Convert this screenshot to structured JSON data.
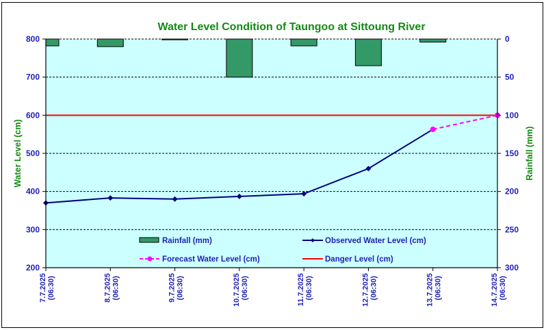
{
  "chart_data": {
    "type": "line",
    "title": "Water Level Condition of Taungoo at  Sittoung River",
    "ylabel": "Water Level (cm)",
    "y2label": "Rainfall (mm)",
    "ylim": [
      200,
      800
    ],
    "yticks": [
      "800",
      "700",
      "600",
      "500",
      "400",
      "300",
      "200"
    ],
    "ytick_values": [
      800,
      700,
      600,
      500,
      400,
      300,
      200
    ],
    "y2lim": [
      0,
      300
    ],
    "y2_inverted": true,
    "y2ticks": [
      "0",
      "50",
      "100",
      "150",
      "200",
      "250",
      "300"
    ],
    "y2tick_values": [
      0,
      50,
      100,
      150,
      200,
      250,
      300
    ],
    "grid": true,
    "categories": [
      {
        "date": "7.7.2025",
        "time": "(06:30)"
      },
      {
        "date": "8.7.2025",
        "time": "(06:30)"
      },
      {
        "date": "9.7.2025",
        "time": "(06:30)"
      },
      {
        "date": "10.7.2025",
        "time": "(06:30)"
      },
      {
        "date": "11.7.2025",
        "time": "(06:30)"
      },
      {
        "date": "12.7.2025",
        "time": "(06:30)"
      },
      {
        "date": "13.7.2025",
        "time": "(06:30)"
      },
      {
        "date": "14.7.2025",
        "time": "(06:30)"
      }
    ],
    "series": [
      {
        "name": "Rainfall (mm)",
        "type": "bar",
        "axis": "y2",
        "color": "#339966",
        "values": [
          9,
          10,
          1,
          50,
          9,
          35,
          4,
          null
        ]
      },
      {
        "name": "Observed Water Level (cm)",
        "type": "line",
        "axis": "y",
        "color": "#000080",
        "marker": "diamond",
        "values": [
          370,
          383,
          380,
          387,
          394,
          460,
          563,
          null
        ]
      },
      {
        "name": "Forecast Water Level (cm)",
        "type": "line",
        "axis": "y",
        "color": "#ff00ff",
        "marker": "circle",
        "dashed": true,
        "values": [
          null,
          null,
          null,
          null,
          null,
          null,
          563,
          600
        ]
      },
      {
        "name": "Danger Level (cm)",
        "type": "line",
        "axis": "y",
        "color": "#ff0000",
        "values": [
          600,
          600,
          600,
          600,
          600,
          600,
          600,
          600
        ]
      }
    ],
    "legend": {
      "placement": "bottom-inside",
      "entries": [
        "Rainfall (mm)",
        "Observed Water Level (cm)",
        "Forecast Water Level (cm)",
        "Danger Level (cm)"
      ]
    },
    "colors": {
      "plot_background": "#ccffff",
      "title": "#138a13",
      "tick_labels": "#1f1fb8"
    }
  }
}
